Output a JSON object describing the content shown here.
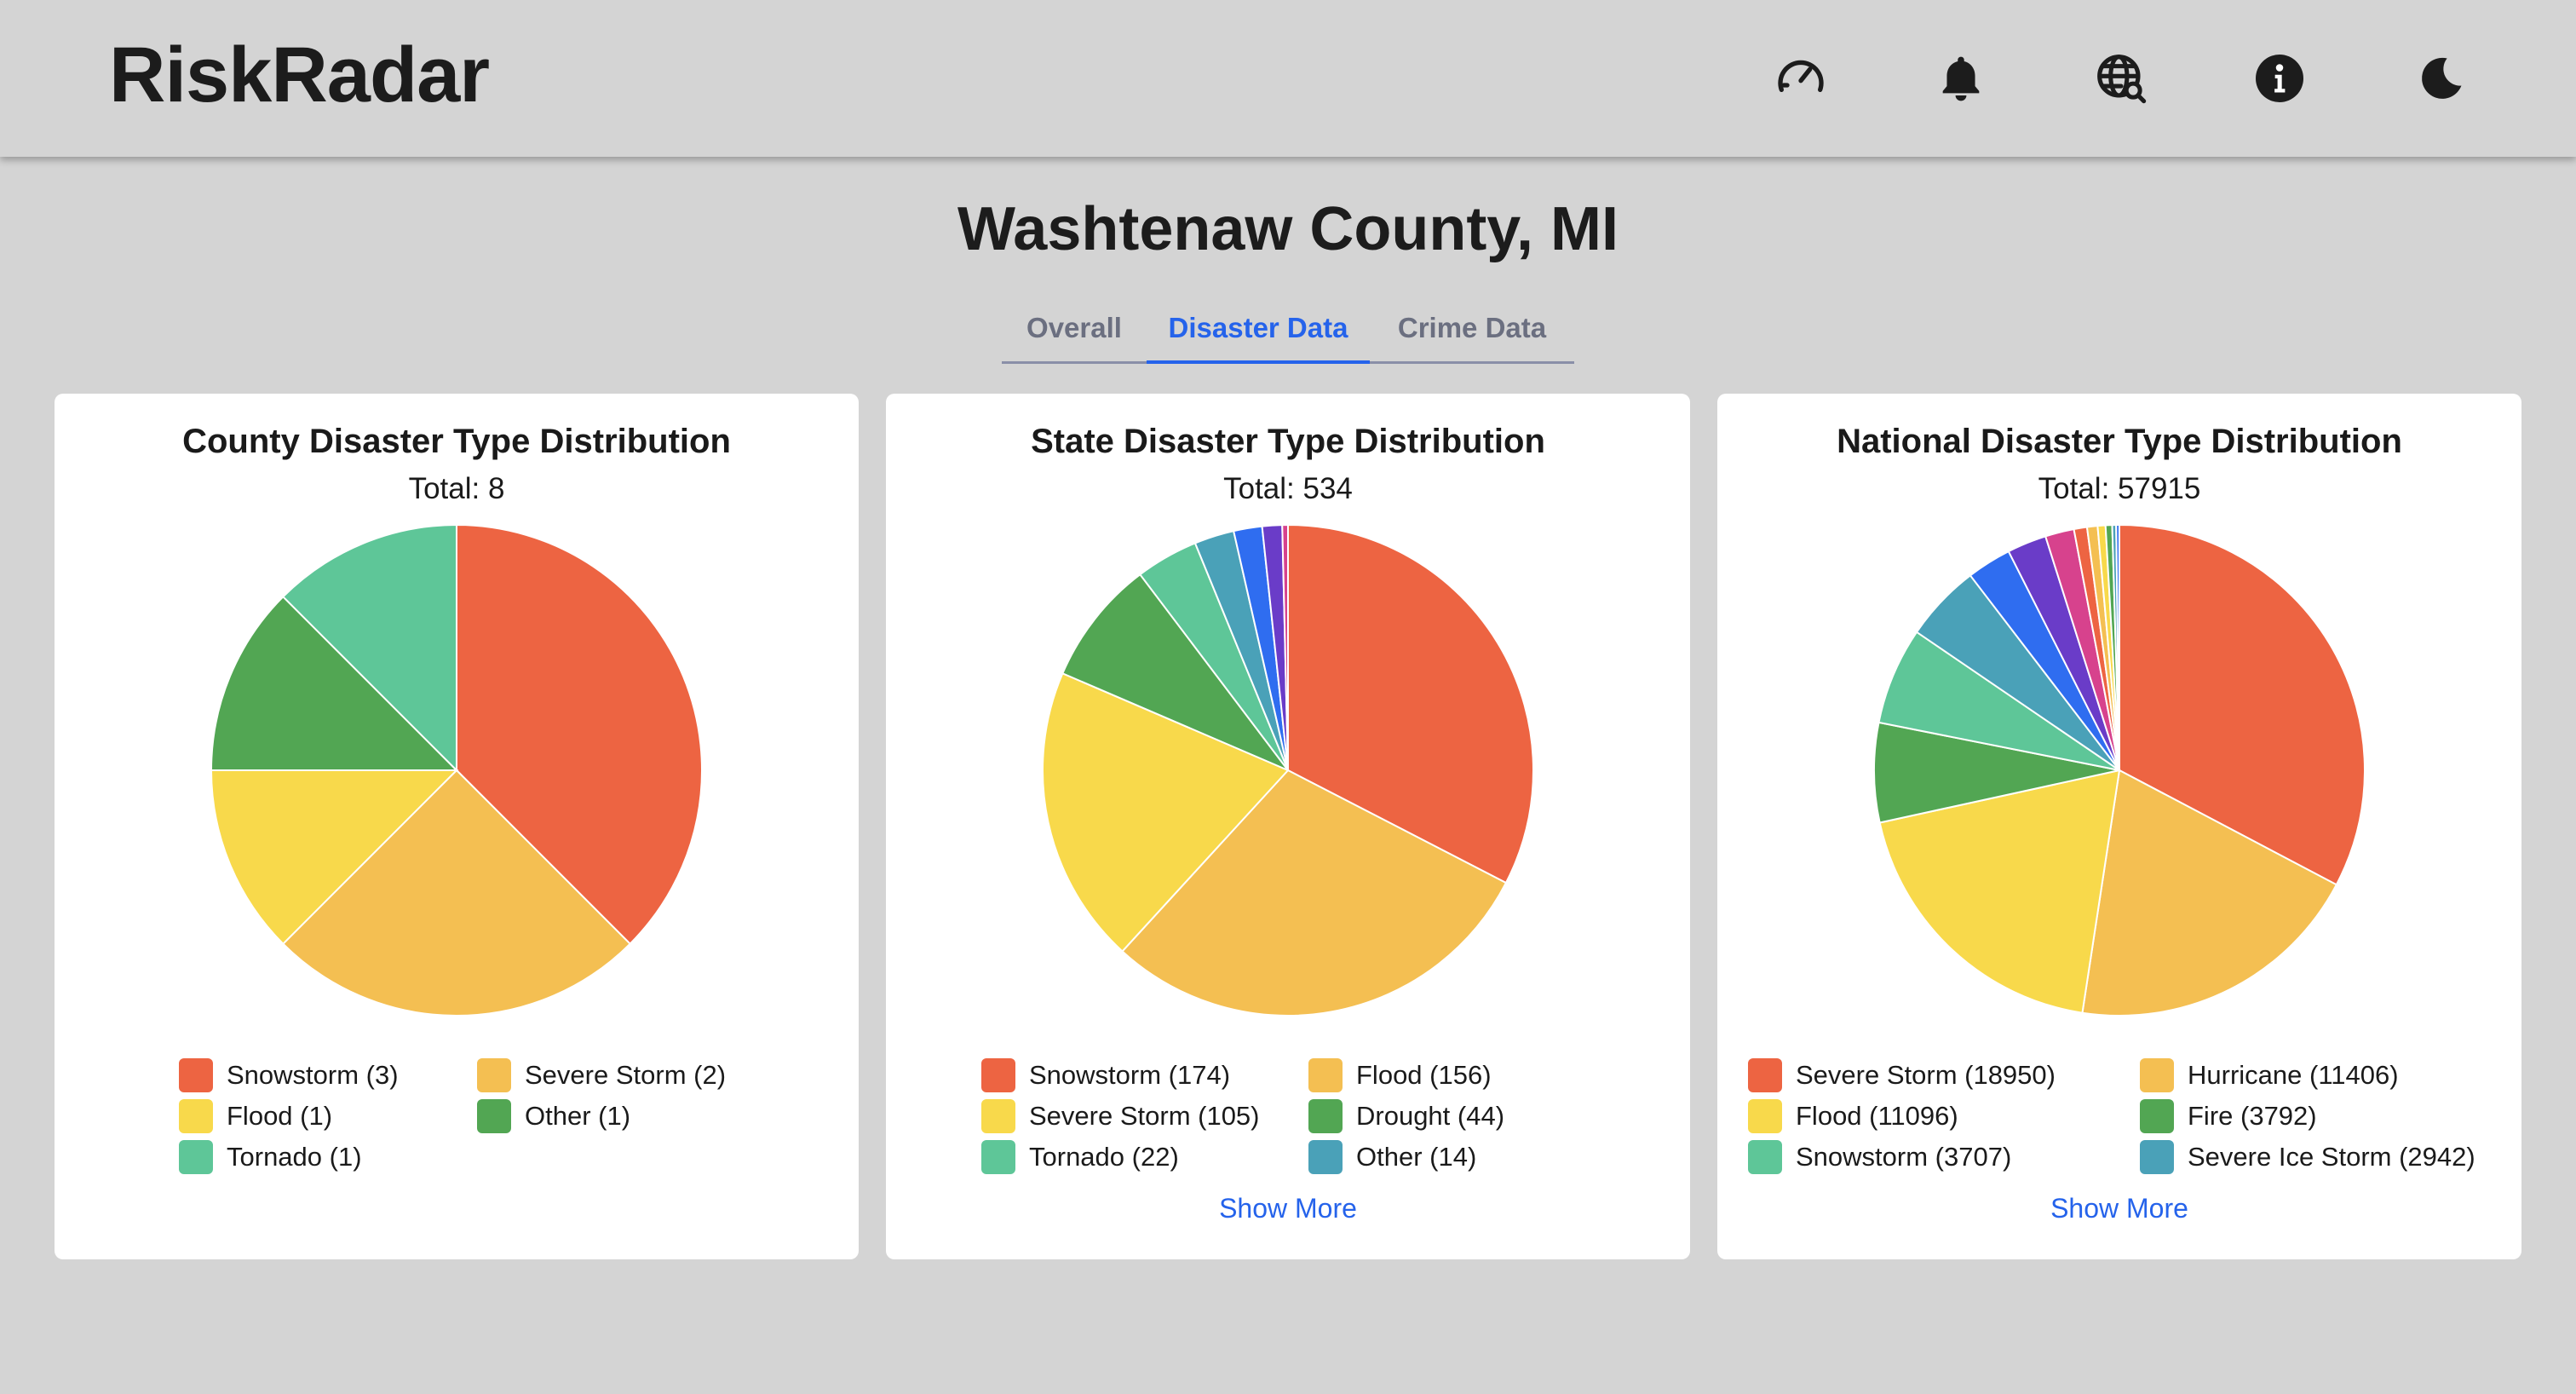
{
  "app": {
    "brand": "RiskRadar",
    "nav_icons": [
      "speedometer-icon",
      "bell-icon",
      "globe-search-icon",
      "info-icon",
      "moon-icon"
    ]
  },
  "page": {
    "title": "Washtenaw County, MI",
    "tabs": [
      {
        "label": "Overall",
        "active": false
      },
      {
        "label": "Disaster Data",
        "active": true
      },
      {
        "label": "Crime Data",
        "active": false
      }
    ]
  },
  "colors": {
    "accent": "#2563eb",
    "background": "#d4d4d4"
  },
  "cards": [
    {
      "title": "County Disaster Type Distribution",
      "total_label": "Total: 8",
      "show_more": ""
    },
    {
      "title": "State Disaster Type Distribution",
      "total_label": "Total: 534",
      "show_more": "Show More"
    },
    {
      "title": "National Disaster Type Distribution",
      "total_label": "Total: 57915",
      "show_more": "Show More"
    }
  ],
  "chart_data": [
    {
      "type": "pie",
      "title": "County Disaster Type Distribution",
      "subtitle": "Total: 8",
      "total": 8,
      "slices": [
        {
          "name": "Snowstorm",
          "value": 3,
          "color": "#ed6442"
        },
        {
          "name": "Severe Storm",
          "value": 2,
          "color": "#f4bf52"
        },
        {
          "name": "Flood",
          "value": 1,
          "color": "#f8d94b"
        },
        {
          "name": "Other",
          "value": 1,
          "color": "#52a653"
        },
        {
          "name": "Tornado",
          "value": 1,
          "color": "#5ec698"
        }
      ],
      "legend": [
        {
          "label": "Snowstorm (3)",
          "color": "#ed6442"
        },
        {
          "label": "Severe Storm (2)",
          "color": "#f4bf52"
        },
        {
          "label": "Flood (1)",
          "color": "#f8d94b"
        },
        {
          "label": "Other (1)",
          "color": "#52a653"
        },
        {
          "label": "Tornado (1)",
          "color": "#5ec698"
        }
      ],
      "legend_placement": "bottom"
    },
    {
      "type": "pie",
      "title": "State Disaster Type Distribution",
      "subtitle": "Total: 534",
      "total": 534,
      "slices": [
        {
          "name": "Snowstorm",
          "value": 174,
          "color": "#ed6442"
        },
        {
          "name": "Flood",
          "value": 156,
          "color": "#f4bf52"
        },
        {
          "name": "Severe Storm",
          "value": 105,
          "color": "#f8d94b"
        },
        {
          "name": "Drought",
          "value": 44,
          "color": "#52a653"
        },
        {
          "name": "Tornado",
          "value": 22,
          "color": "#5ec698"
        },
        {
          "name": "Other",
          "value": 14,
          "color": "#4aa1b8"
        },
        {
          "value": 10,
          "color": "#2f6df0"
        },
        {
          "value": 7,
          "color": "#6a3cc8"
        },
        {
          "value": 2,
          "color": "#d7428d"
        }
      ],
      "legend": [
        {
          "label": "Snowstorm (174)",
          "color": "#ed6442"
        },
        {
          "label": "Flood (156)",
          "color": "#f4bf52"
        },
        {
          "label": "Severe Storm (105)",
          "color": "#f8d94b"
        },
        {
          "label": "Drought (44)",
          "color": "#52a653"
        },
        {
          "label": "Tornado (22)",
          "color": "#5ec698"
        },
        {
          "label": "Other (14)",
          "color": "#4aa1b8"
        }
      ],
      "legend_placement": "bottom"
    },
    {
      "type": "pie",
      "title": "National Disaster Type Distribution",
      "subtitle": "Total: 57915",
      "total": 57915,
      "slices": [
        {
          "name": "Severe Storm",
          "value": 18950,
          "color": "#ed6442"
        },
        {
          "name": "Hurricane",
          "value": 11406,
          "color": "#f4bf52"
        },
        {
          "name": "Flood",
          "value": 11096,
          "color": "#f8d94b"
        },
        {
          "name": "Fire",
          "value": 3792,
          "color": "#52a653"
        },
        {
          "name": "Snowstorm",
          "value": 3707,
          "color": "#5ec698"
        },
        {
          "name": "Severe Ice Storm",
          "value": 2942,
          "color": "#4aa1b8"
        },
        {
          "value": 1700,
          "color": "#2f6df0"
        },
        {
          "value": 1500,
          "color": "#6a3cc8"
        },
        {
          "value": 1100,
          "color": "#d7428d"
        },
        {
          "value": 500,
          "color": "#ed6442"
        },
        {
          "value": 400,
          "color": "#f4bf52"
        },
        {
          "value": 300,
          "color": "#f8d94b"
        },
        {
          "value": 250,
          "color": "#52a653"
        },
        {
          "value": 150,
          "color": "#4aa1b8"
        },
        {
          "value": 122,
          "color": "#2f6df0"
        }
      ],
      "legend": [
        {
          "label": "Severe Storm (18950)",
          "color": "#ed6442"
        },
        {
          "label": "Hurricane (11406)",
          "color": "#f4bf52"
        },
        {
          "label": "Flood (11096)",
          "color": "#f8d94b"
        },
        {
          "label": "Fire (3792)",
          "color": "#52a653"
        },
        {
          "label": "Snowstorm (3707)",
          "color": "#5ec698"
        },
        {
          "label": "Severe Ice Storm (2942)",
          "color": "#4aa1b8"
        }
      ],
      "legend_placement": "bottom"
    }
  ]
}
